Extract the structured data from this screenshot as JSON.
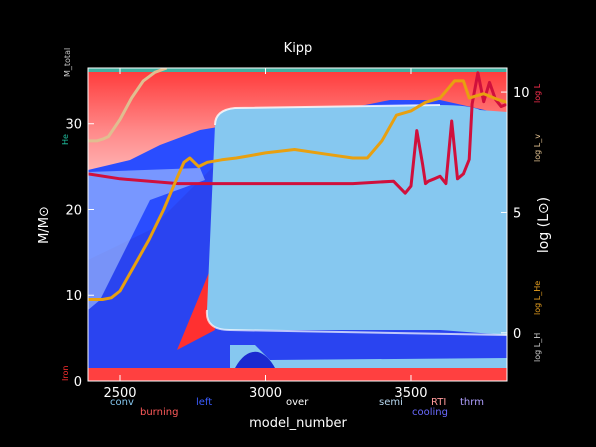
{
  "chart_data": {
    "type": "area",
    "title": "Kipp",
    "xlabel": "model_number",
    "ylabel_left": "M/M⊙",
    "ylabel_right": "log (L⊙)",
    "xlim": [
      2390,
      3830
    ],
    "ylim_left": [
      0,
      36.5
    ],
    "ylim_right": [
      -2.0,
      11.0
    ],
    "x_ticks": [
      2500,
      3000,
      3500
    ],
    "y_left_ticks": [
      0,
      10,
      20,
      30
    ],
    "y_right_ticks": [
      0,
      5,
      10
    ],
    "x_tick_labels": [
      "2500",
      "3000",
      "3500"
    ],
    "y_left_tick_labels": [
      "0",
      "10",
      "20",
      "30"
    ],
    "y_right_tick_labels": [
      "0",
      "5",
      "10"
    ],
    "legend": [
      {
        "label": "conv",
        "color": "#86c8f0"
      },
      {
        "label": "burning",
        "color": "#ff5a5a"
      },
      {
        "label": "left",
        "color": "#3a5cff"
      },
      {
        "label": "over",
        "color": "#ffffff"
      },
      {
        "label": "semi",
        "color": "#b8d8f0"
      },
      {
        "label": "RTI",
        "color": "#ff9a9a"
      },
      {
        "label": "cooling",
        "color": "#6a6aff"
      },
      {
        "label": "thrm",
        "color": "#b0a0ff"
      }
    ],
    "side_labels": [
      {
        "label": "M_total",
        "color": "#cccccc"
      },
      {
        "label": "He",
        "color": "#20c0a0"
      },
      {
        "label": "Iron",
        "color": "#ff3030"
      },
      {
        "label": "log L_H",
        "color": "#cccccc"
      },
      {
        "label": "log L_He",
        "color": "#e8a020"
      },
      {
        "label": "log L_v",
        "color": "#e0c090"
      },
      {
        "label": "log L",
        "color": "#ff3050"
      }
    ],
    "series": [
      {
        "name": "log L",
        "axis": "right",
        "color": "#d0103c",
        "x": [
          2390,
          2500,
          2700,
          2900,
          3100,
          3300,
          3440,
          3480,
          3500,
          3520,
          3540,
          3550,
          3560,
          3580,
          3600,
          3620,
          3640,
          3660,
          3680,
          3700,
          3710,
          3730,
          3750,
          3770,
          3790,
          3810,
          3830
        ],
        "y": [
          6.6,
          6.4,
          6.2,
          6.2,
          6.2,
          6.2,
          6.3,
          5.8,
          6.1,
          8.4,
          7.0,
          6.2,
          6.3,
          6.4,
          6.5,
          6.2,
          8.8,
          6.4,
          6.6,
          7.2,
          9.5,
          10.8,
          9.6,
          10.4,
          9.7,
          9.4,
          9.5
        ]
      },
      {
        "name": "log L_He",
        "axis": "left",
        "color": "#e8a010",
        "x": [
          2390,
          2440,
          2470,
          2500,
          2550,
          2600,
          2650,
          2700,
          2720,
          2740,
          2770,
          2800,
          2850,
          2900,
          2950,
          3000,
          3100,
          3200,
          3300,
          3350,
          3400,
          3450,
          3500,
          3550,
          3600,
          3650,
          3680,
          3700,
          3750,
          3800,
          3830
        ],
        "y": [
          9.5,
          9.5,
          9.7,
          10.5,
          13.5,
          16.5,
          20.0,
          24.0,
          25.5,
          26.0,
          25.0,
          25.5,
          25.8,
          26.0,
          26.3,
          26.6,
          27.0,
          26.5,
          26.0,
          26.0,
          28.0,
          31.0,
          31.5,
          32.5,
          33.0,
          35.0,
          35.0,
          33.0,
          33.5,
          32.8,
          32.5
        ]
      },
      {
        "name": "log L_v",
        "axis": "left",
        "color": "#e0be90",
        "x": [
          2390,
          2420,
          2440,
          2460,
          2500,
          2540,
          2580,
          2620,
          2660
        ],
        "y": [
          28.0,
          28.0,
          28.2,
          28.5,
          30.5,
          33.0,
          35.0,
          36.0,
          36.5
        ]
      }
    ]
  }
}
